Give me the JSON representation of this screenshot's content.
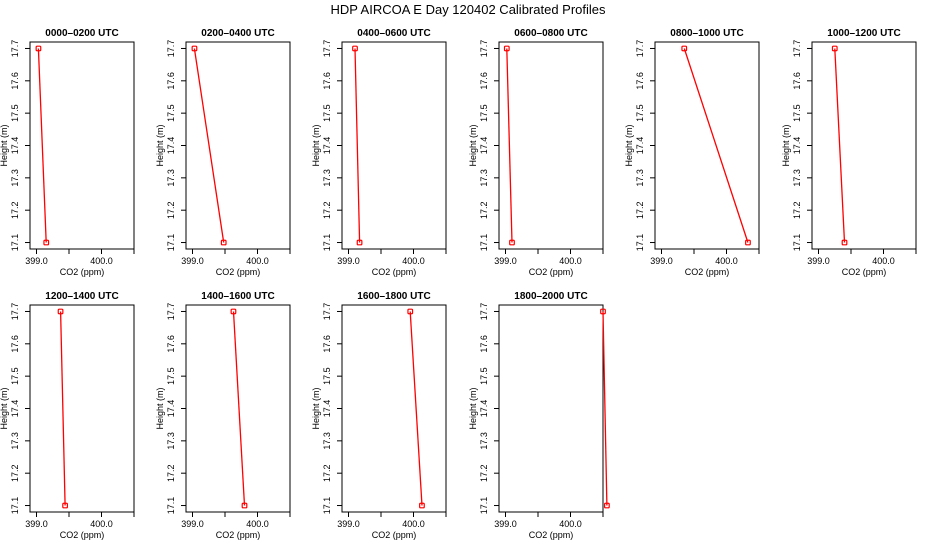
{
  "figure": {
    "title": "HDP AIRCOA E  Day 120402  Calibrated Profiles"
  },
  "chart_data": [
    {
      "type": "line",
      "title": "0000–0200 UTC",
      "xlabel": "CO2 (ppm)",
      "ylabel": "Height (m)",
      "xlim": [
        398.9,
        400.5
      ],
      "ylim": [
        17.08,
        17.72
      ],
      "xticks": [
        399.0,
        400.0
      ],
      "yticks": [
        17.1,
        17.2,
        17.3,
        17.4,
        17.5,
        17.6,
        17.7
      ],
      "series": [
        {
          "x": [
            399.03,
            399.15
          ],
          "y": [
            17.7,
            17.1
          ],
          "color": "#ff0000"
        }
      ]
    },
    {
      "type": "line",
      "title": "0200–0400 UTC",
      "xlabel": "CO2 (ppm)",
      "ylabel": "Height (m)",
      "xlim": [
        398.9,
        400.5
      ],
      "ylim": [
        17.08,
        17.72
      ],
      "xticks": [
        399.0,
        400.0
      ],
      "yticks": [
        17.1,
        17.2,
        17.3,
        17.4,
        17.5,
        17.6,
        17.7
      ],
      "series": [
        {
          "x": [
            399.03,
            399.48
          ],
          "y": [
            17.7,
            17.1
          ],
          "color": "#ff0000"
        }
      ]
    },
    {
      "type": "line",
      "title": "0400–0600 UTC",
      "xlabel": "CO2 (ppm)",
      "ylabel": "Height (m)",
      "xlim": [
        398.9,
        400.5
      ],
      "ylim": [
        17.08,
        17.72
      ],
      "xticks": [
        399.0,
        400.0
      ],
      "yticks": [
        17.1,
        17.2,
        17.3,
        17.4,
        17.5,
        17.6,
        17.7
      ],
      "series": [
        {
          "x": [
            399.1,
            399.17
          ],
          "y": [
            17.7,
            17.1
          ],
          "color": "#ff0000"
        }
      ]
    },
    {
      "type": "line",
      "title": "0600–0800 UTC",
      "xlabel": "CO2 (ppm)",
      "ylabel": "Height (m)",
      "xlim": [
        398.9,
        400.5
      ],
      "ylim": [
        17.08,
        17.72
      ],
      "xticks": [
        399.0,
        400.0
      ],
      "yticks": [
        17.1,
        17.2,
        17.3,
        17.4,
        17.5,
        17.6,
        17.7
      ],
      "series": [
        {
          "x": [
            399.02,
            399.1
          ],
          "y": [
            17.7,
            17.1
          ],
          "color": "#ff0000"
        }
      ]
    },
    {
      "type": "line",
      "title": "0800–1000 UTC",
      "xlabel": "CO2 (ppm)",
      "ylabel": "Height (m)",
      "xlim": [
        398.9,
        400.5
      ],
      "ylim": [
        17.08,
        17.72
      ],
      "xticks": [
        399.0,
        400.0
      ],
      "yticks": [
        17.1,
        17.2,
        17.3,
        17.4,
        17.5,
        17.6,
        17.7
      ],
      "series": [
        {
          "x": [
            399.35,
            400.33
          ],
          "y": [
            17.7,
            17.1
          ],
          "color": "#ff0000"
        }
      ]
    },
    {
      "type": "line",
      "title": "1000–1200 UTC",
      "xlabel": "CO2 (ppm)",
      "ylabel": "Height (m)",
      "xlim": [
        398.9,
        400.5
      ],
      "ylim": [
        17.08,
        17.72
      ],
      "xticks": [
        399.0,
        400.0
      ],
      "yticks": [
        17.1,
        17.2,
        17.3,
        17.4,
        17.5,
        17.6,
        17.7
      ],
      "series": [
        {
          "x": [
            399.25,
            399.4
          ],
          "y": [
            17.7,
            17.1
          ],
          "color": "#ff0000"
        }
      ]
    },
    {
      "type": "line",
      "title": "1200–1400 UTC",
      "xlabel": "CO2 (ppm)",
      "ylabel": "Height (m)",
      "xlim": [
        398.9,
        400.5
      ],
      "ylim": [
        17.08,
        17.72
      ],
      "xticks": [
        399.0,
        400.0
      ],
      "yticks": [
        17.1,
        17.2,
        17.3,
        17.4,
        17.5,
        17.6,
        17.7
      ],
      "series": [
        {
          "x": [
            399.37,
            399.44
          ],
          "y": [
            17.7,
            17.1
          ],
          "color": "#ff0000"
        }
      ]
    },
    {
      "type": "line",
      "title": "1400–1600 UTC",
      "xlabel": "CO2 (ppm)",
      "ylabel": "Height (m)",
      "xlim": [
        398.9,
        400.5
      ],
      "ylim": [
        17.08,
        17.72
      ],
      "xticks": [
        399.0,
        400.0
      ],
      "yticks": [
        17.1,
        17.2,
        17.3,
        17.4,
        17.5,
        17.6,
        17.7
      ],
      "series": [
        {
          "x": [
            399.63,
            399.8
          ],
          "y": [
            17.7,
            17.1
          ],
          "color": "#ff0000"
        }
      ]
    },
    {
      "type": "line",
      "title": "1600–1800 UTC",
      "xlabel": "CO2 (ppm)",
      "ylabel": "Height (m)",
      "xlim": [
        398.9,
        400.5
      ],
      "ylim": [
        17.08,
        17.72
      ],
      "xticks": [
        399.0,
        400.0
      ],
      "yticks": [
        17.1,
        17.2,
        17.3,
        17.4,
        17.5,
        17.6,
        17.7
      ],
      "series": [
        {
          "x": [
            399.95,
            400.13
          ],
          "y": [
            17.7,
            17.1
          ],
          "color": "#ff0000"
        }
      ]
    },
    {
      "type": "line",
      "title": "1800–2000 UTC",
      "xlabel": "CO2 (ppm)",
      "ylabel": "Height (m)",
      "xlim": [
        398.9,
        400.5
      ],
      "ylim": [
        17.08,
        17.72
      ],
      "xticks": [
        399.0,
        400.0
      ],
      "yticks": [
        17.1,
        17.2,
        17.3,
        17.4,
        17.5,
        17.6,
        17.7
      ],
      "series": [
        {
          "x": [
            400.5,
            400.56
          ],
          "y": [
            17.7,
            17.1
          ],
          "color": "#ff0000"
        }
      ]
    }
  ]
}
